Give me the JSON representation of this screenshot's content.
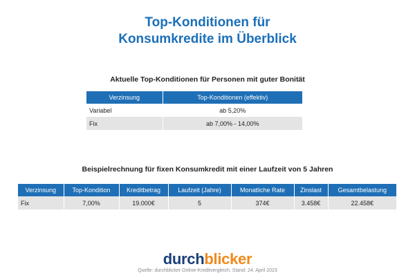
{
  "header": {
    "title": [
      "Top-Konditionen für",
      "Konsumkredite im Überblick"
    ]
  },
  "table1": {
    "caption": "Aktuelle Top-Konditionen für Personen mit guter Bonität",
    "header": [
      "Verzinsung",
      "Top-Konditionen (effektiv)"
    ],
    "rows": [
      [
        "Variabel",
        "ab 5,20%"
      ],
      [
        "Fix",
        "ab 7,00% - 14,00%"
      ]
    ]
  },
  "table2": {
    "caption": "Beispielrechnung für fixen Konsumkredit mit einer Laufzeit von 5 Jahren",
    "header": [
      "Verzinsung",
      "Top-Kondition",
      "Kreditbetrag",
      "Laufzeit (Jahre)",
      "Monatliche Rate",
      "Zinslast",
      "Gesamtbelastung"
    ],
    "rows": [
      [
        "Fix",
        "7,00%",
        "19.000€",
        "5",
        "374€",
        "3.458€",
        "22.458€"
      ]
    ]
  },
  "footer": {
    "logo": [
      "durch",
      "blicker"
    ],
    "source": "Quelle: durchblicker Online-Kreditvergleich, Stand: 24. April 2023"
  }
}
